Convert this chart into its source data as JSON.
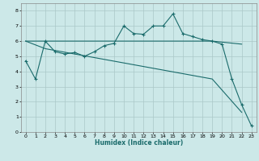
{
  "xlabel": "Humidex (Indice chaleur)",
  "xlim": [
    -0.5,
    23.5
  ],
  "ylim": [
    0,
    8.5
  ],
  "xticks": [
    0,
    1,
    2,
    3,
    4,
    5,
    6,
    7,
    8,
    9,
    10,
    11,
    12,
    13,
    14,
    15,
    16,
    17,
    18,
    19,
    20,
    21,
    22,
    23
  ],
  "yticks": [
    0,
    1,
    2,
    3,
    4,
    5,
    6,
    7,
    8
  ],
  "bg_color": "#cce8e8",
  "grid_color": "#aac8c8",
  "line_color": "#1a6b6b",
  "line1_x": [
    0,
    1,
    2,
    3,
    4,
    5,
    6,
    7,
    8,
    9,
    10,
    11,
    12,
    13,
    14,
    15,
    16,
    17,
    18,
    19,
    20,
    21,
    22,
    23
  ],
  "line1_y": [
    4.7,
    3.5,
    6.0,
    5.3,
    5.15,
    5.25,
    5.0,
    5.3,
    5.7,
    5.85,
    7.0,
    6.5,
    6.45,
    7.0,
    7.0,
    7.8,
    6.5,
    6.3,
    6.1,
    6.0,
    5.8,
    3.5,
    1.8,
    0.4
  ],
  "line2_x": [
    0,
    2,
    19,
    22
  ],
  "line2_y": [
    6.0,
    6.0,
    6.0,
    5.8
  ],
  "line3_x": [
    0,
    2,
    19,
    22
  ],
  "line3_y": [
    6.0,
    5.5,
    3.5,
    1.3
  ]
}
